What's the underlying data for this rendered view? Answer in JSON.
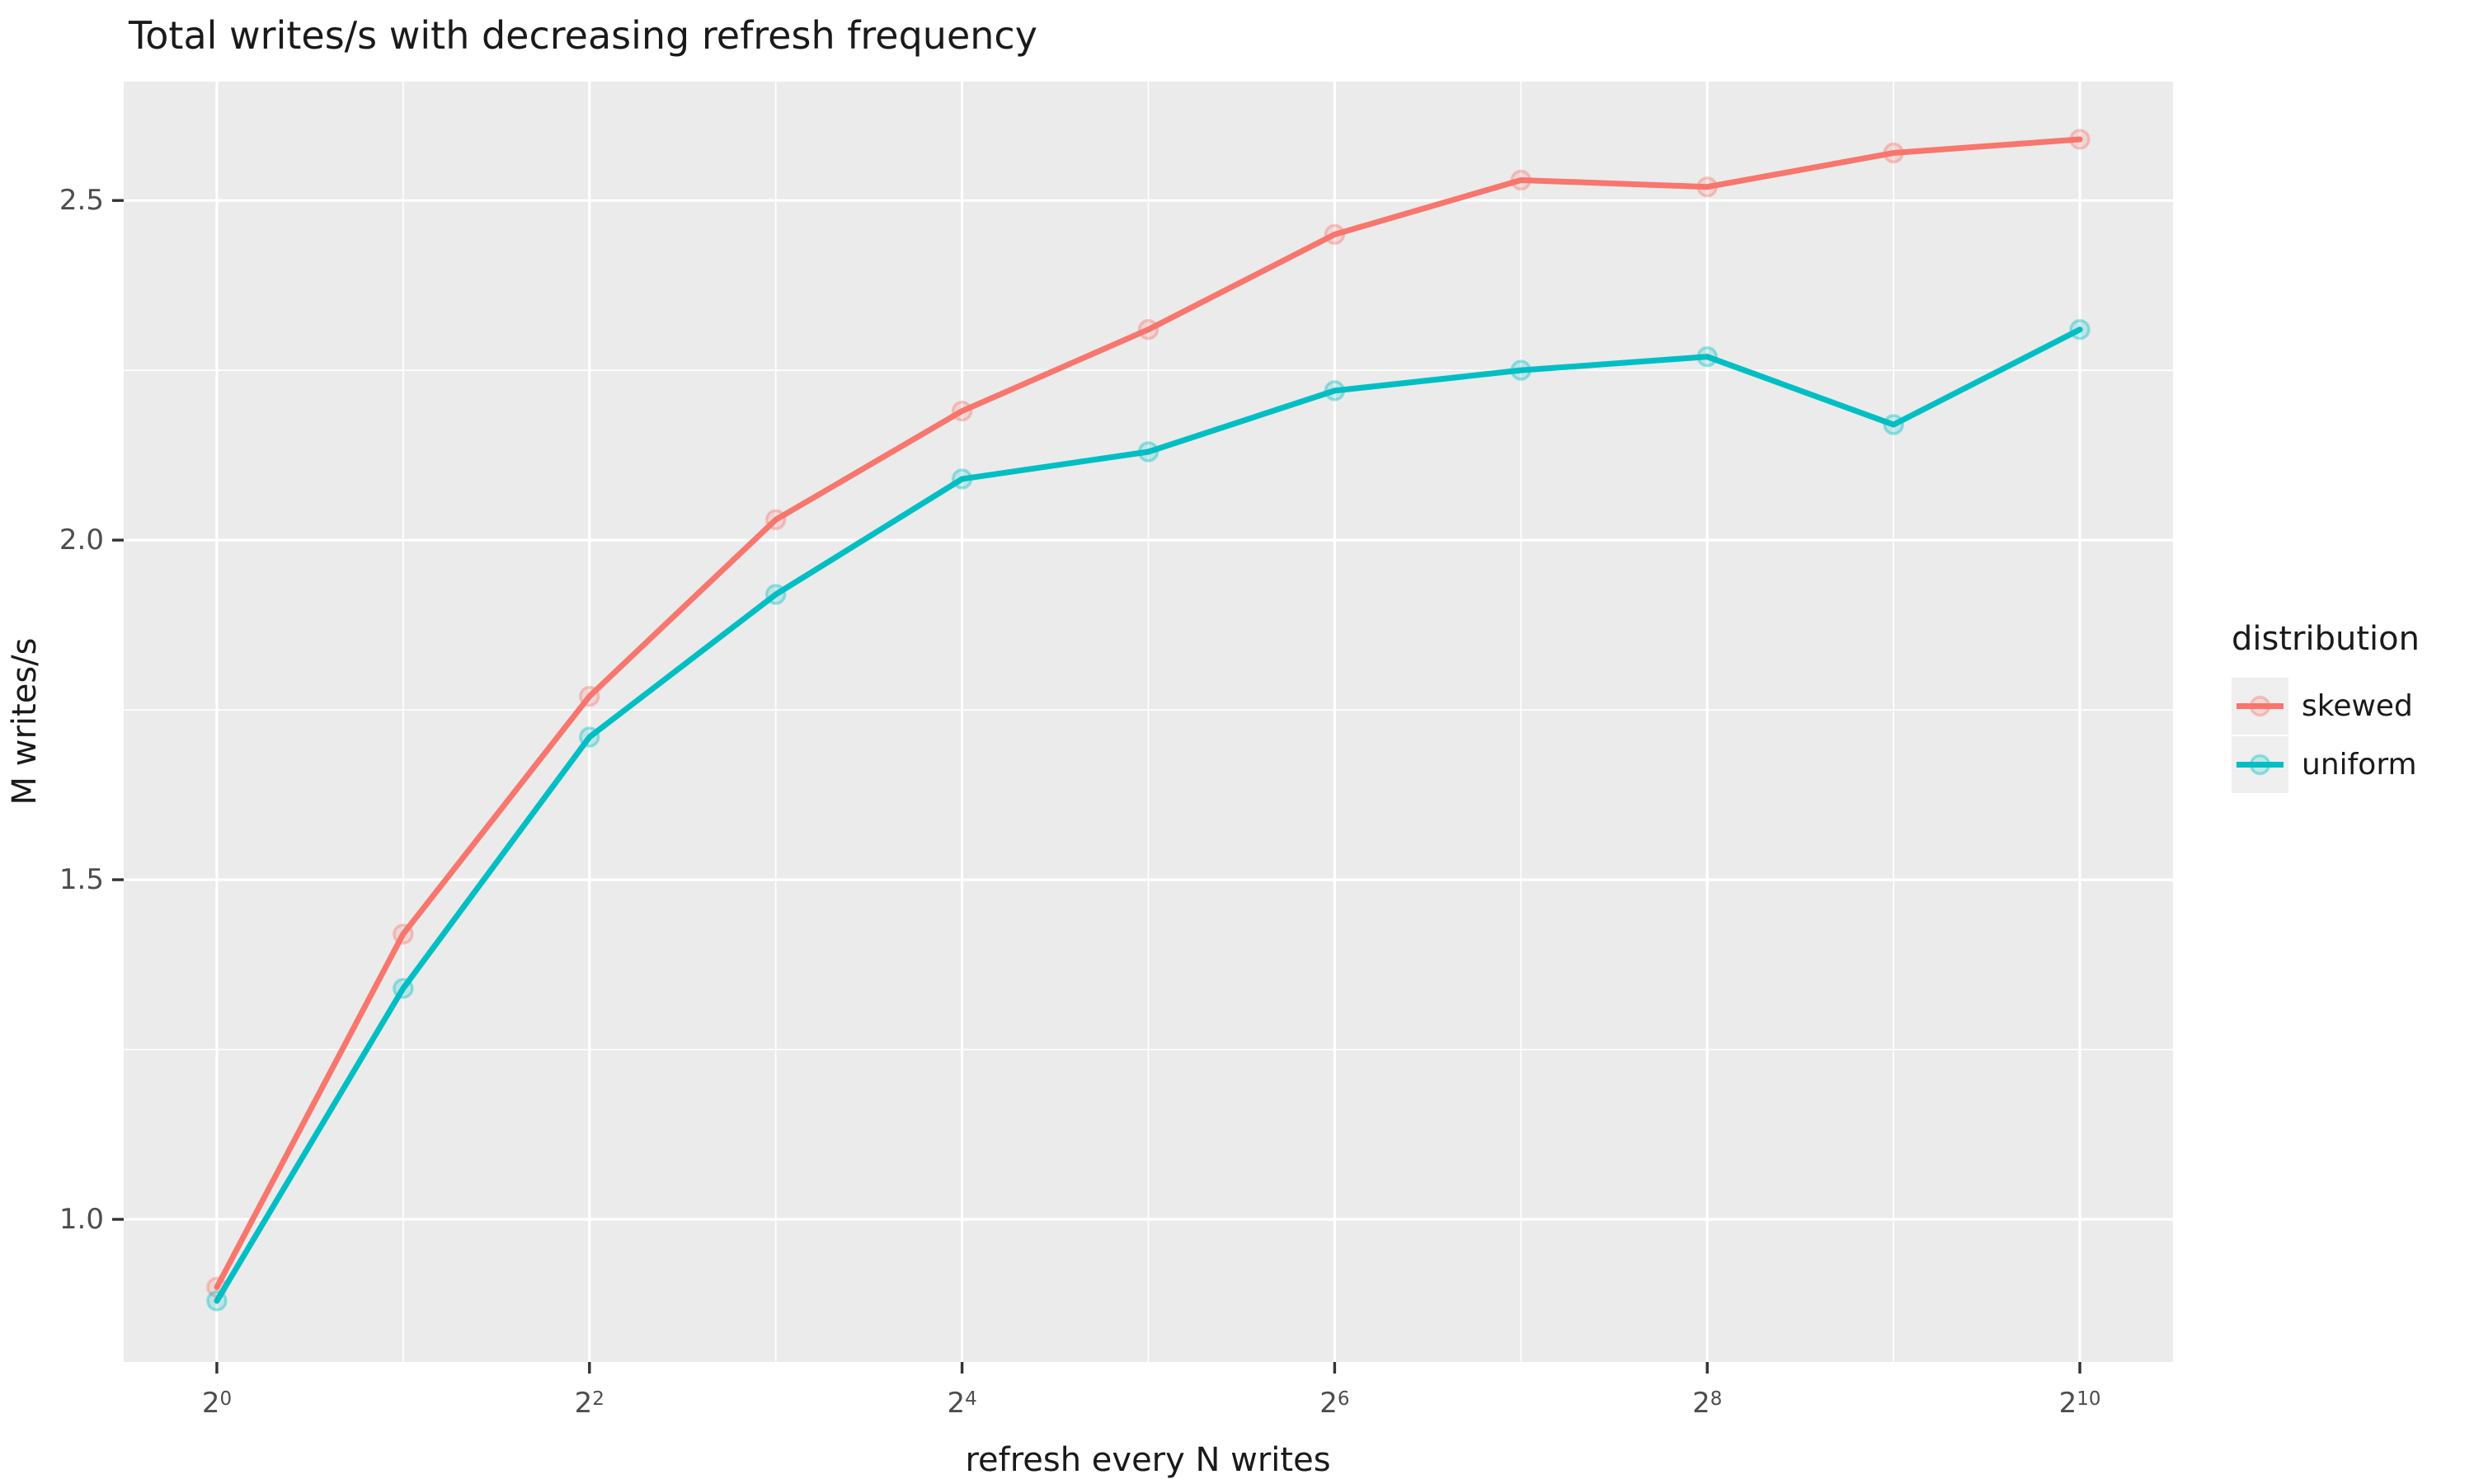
{
  "chart_data": {
    "type": "line",
    "title": "Total writes/s with decreasing refresh frequency",
    "xlabel": "refresh every N writes",
    "ylabel": "M writes/s",
    "legend_title": "distribution",
    "legend_position": "right",
    "grid": "on",
    "x_scale": "log2",
    "x_tick_base": 2,
    "x_exponents": [
      0,
      1,
      2,
      3,
      4,
      5,
      6,
      7,
      8,
      9,
      10
    ],
    "x_tick_exponents": [
      0,
      2,
      4,
      6,
      8,
      10
    ],
    "xlim_exponents": [
      -0.5,
      10.5
    ],
    "y_ticks": [
      1.0,
      1.5,
      2.0,
      2.5
    ],
    "ylim": [
      0.79,
      2.675
    ],
    "series": [
      {
        "name": "skewed",
        "color": "#F8766D",
        "values": [
          0.9,
          1.42,
          1.77,
          2.03,
          2.19,
          2.31,
          2.45,
          2.53,
          2.52,
          2.57,
          2.59
        ]
      },
      {
        "name": "uniform",
        "color": "#00BFC4",
        "values": [
          0.88,
          1.34,
          1.71,
          1.92,
          2.09,
          2.13,
          2.22,
          2.25,
          2.27,
          2.17,
          2.31
        ]
      }
    ]
  }
}
